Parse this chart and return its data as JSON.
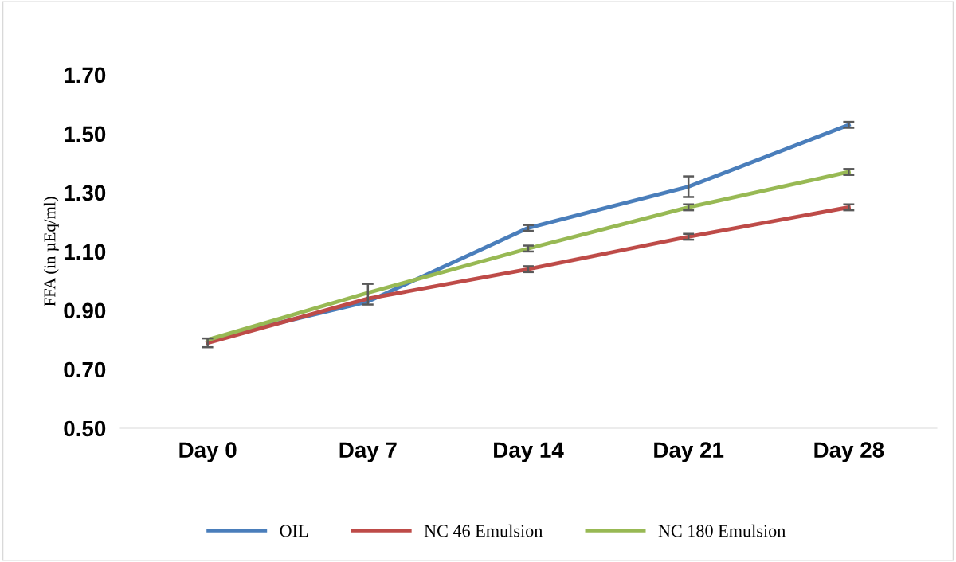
{
  "chart_data": {
    "type": "line",
    "ylabel": "FFA (in µEq/ml)",
    "categories": [
      "Day 0",
      "Day 7",
      "Day 14",
      "Day 21",
      "Day 28"
    ],
    "series": [
      {
        "name": "OIL",
        "color": "#4a7ebb",
        "values": [
          0.8,
          0.93,
          1.18,
          1.32,
          1.53
        ],
        "errors": [
          null,
          null,
          0.01,
          0.035,
          0.01
        ]
      },
      {
        "name": "NC 46 Emulsion",
        "color": "#be4b48",
        "values": [
          0.79,
          0.94,
          1.04,
          1.15,
          1.25
        ],
        "errors": [
          0.015,
          null,
          0.01,
          0.01,
          0.01
        ]
      },
      {
        "name": "NC 180 Emulsion",
        "color": "#98b954",
        "values": [
          0.8,
          0.96,
          1.11,
          1.25,
          1.37
        ],
        "errors": [
          null,
          [
            0.92,
            0.99
          ],
          0.01,
          0.01,
          0.01
        ]
      }
    ],
    "ylim": [
      0.5,
      1.7
    ],
    "yticks": [
      {
        "value": 0.5,
        "label": "0.50"
      },
      {
        "value": 0.7,
        "label": "0.70"
      },
      {
        "value": 0.9,
        "label": "0.90"
      },
      {
        "value": 1.1,
        "label": "1.10"
      },
      {
        "value": 1.3,
        "label": "1.30"
      },
      {
        "value": 1.5,
        "label": "1.50"
      },
      {
        "value": 1.7,
        "label": "1.70"
      }
    ],
    "grid": false,
    "legend": "bottom",
    "marker": "none",
    "line_style": "solid"
  }
}
